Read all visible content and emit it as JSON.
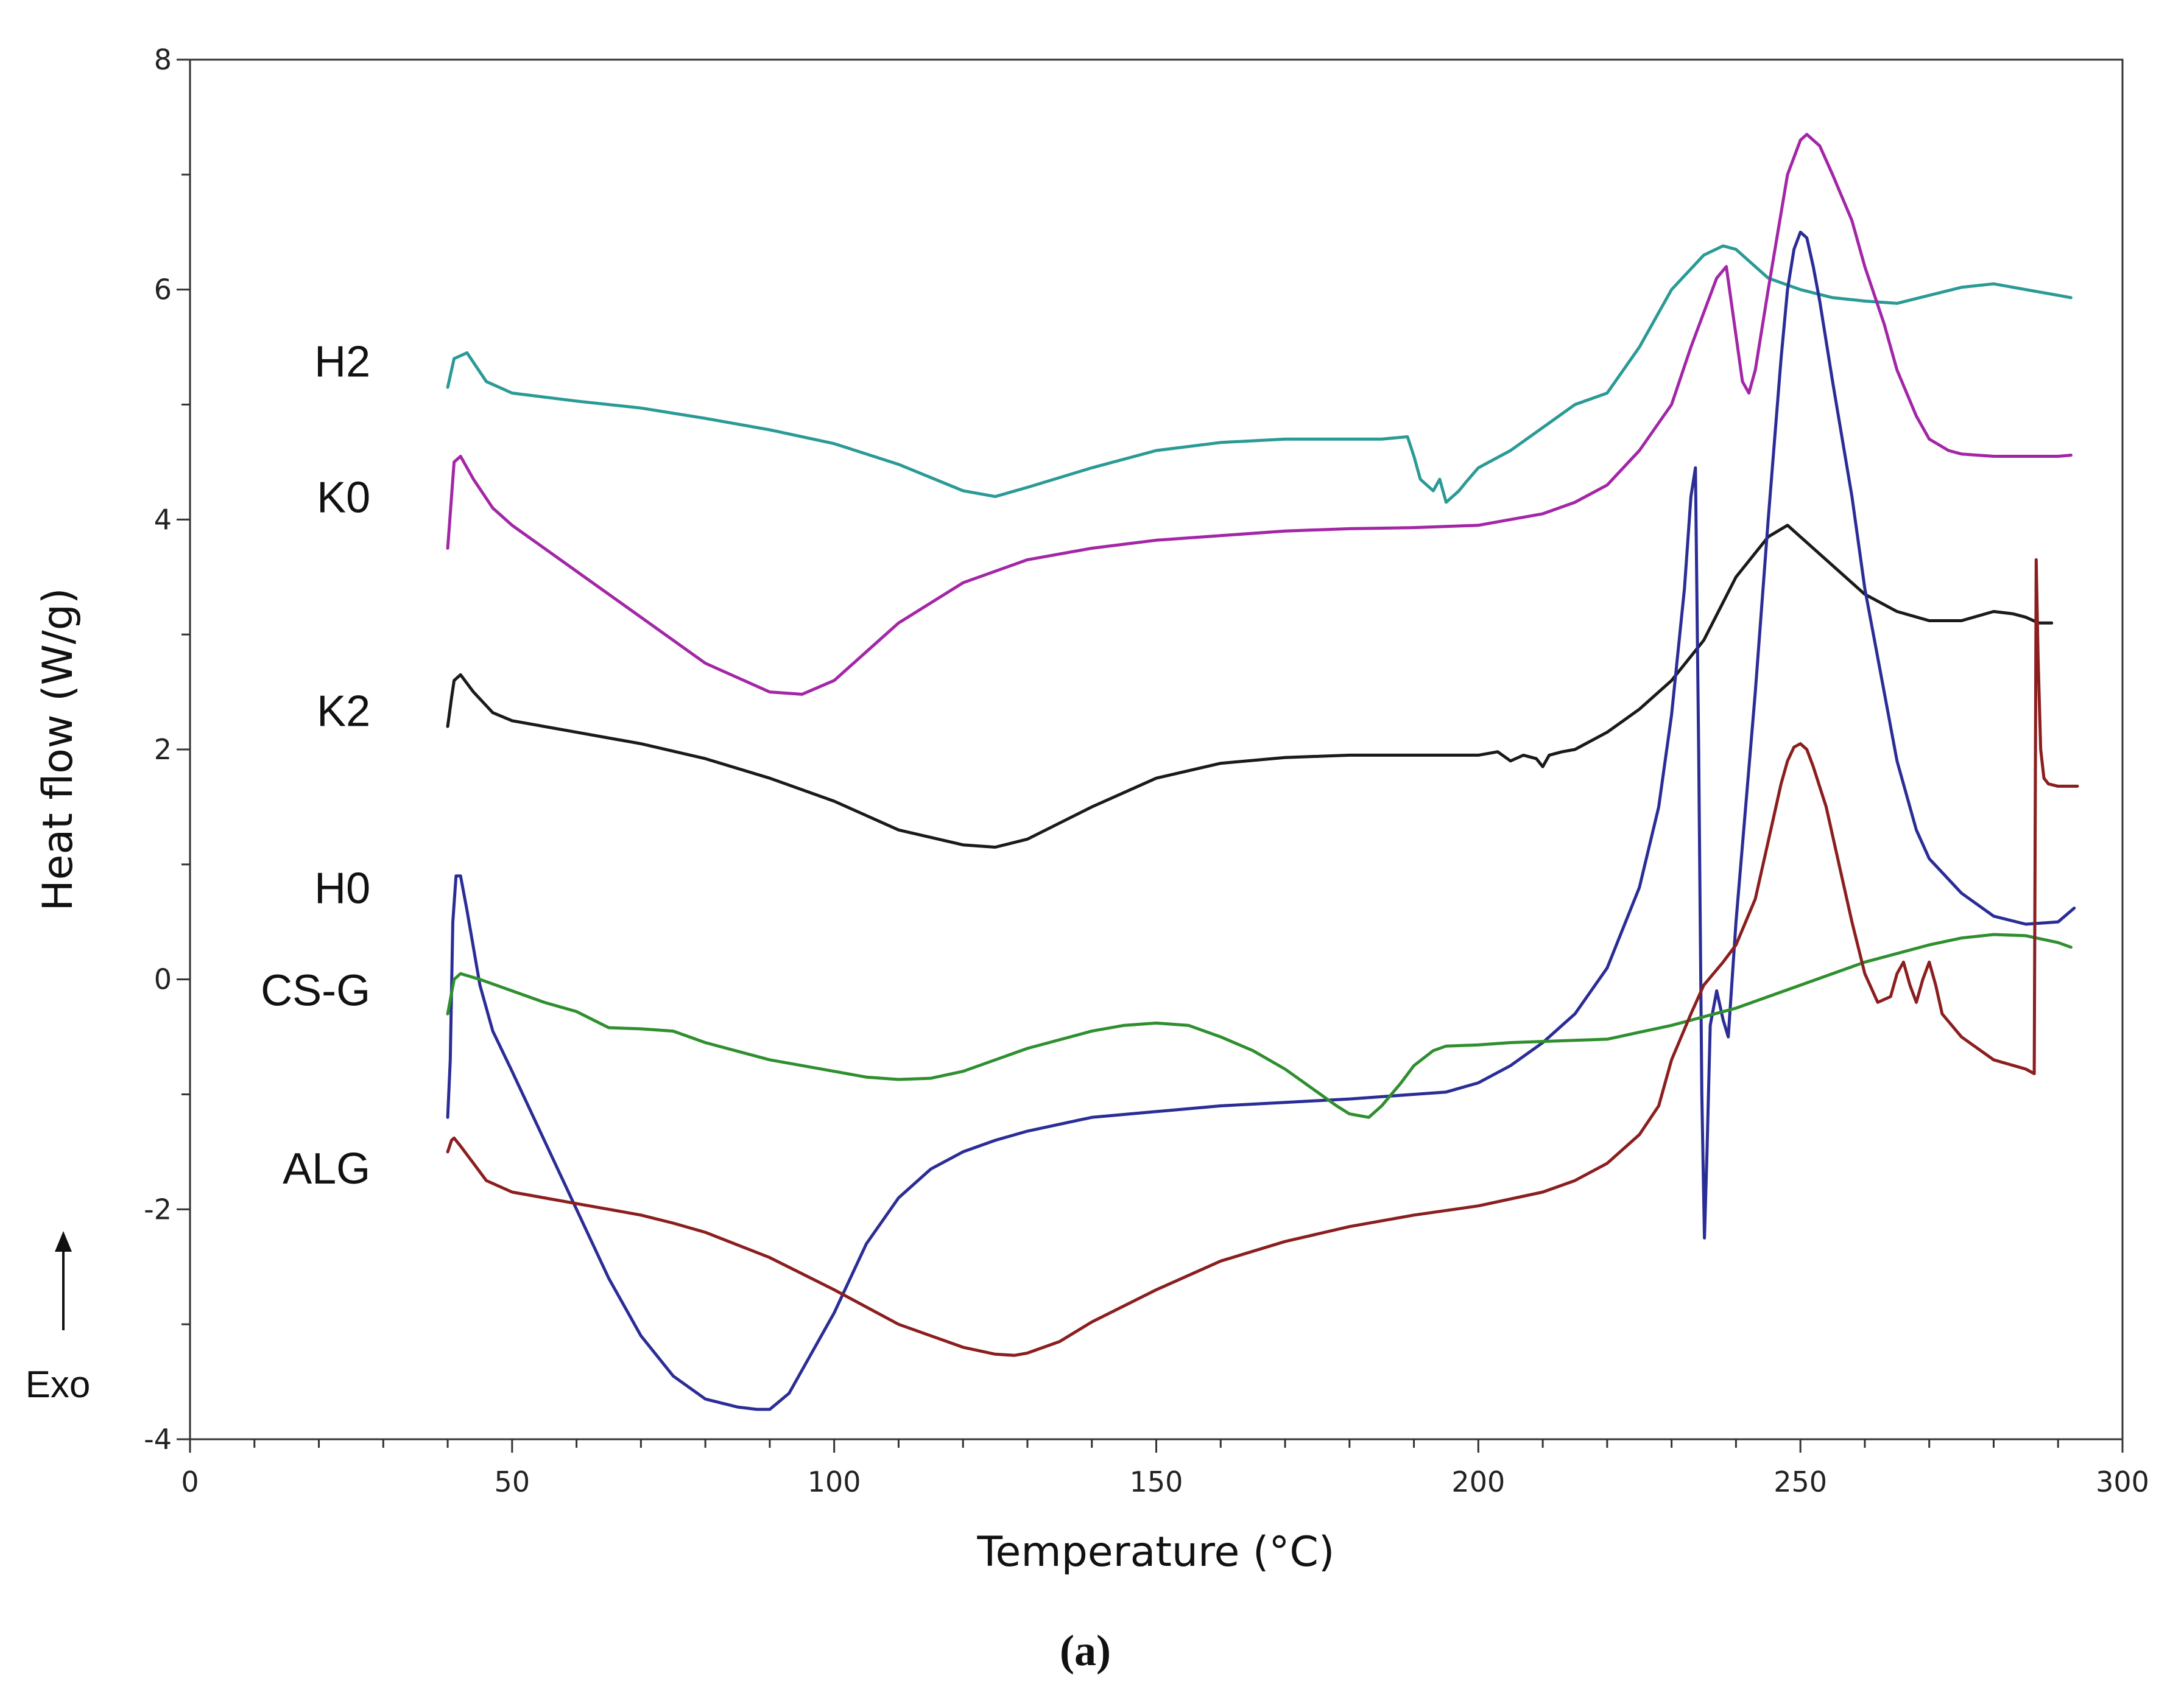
{
  "chart_data": {
    "type": "line",
    "title": "",
    "caption": "(a)",
    "xlabel": "Temperature (°C)",
    "ylabel": "Heat flow (W/g)",
    "xlim": [
      0,
      300
    ],
    "ylim": [
      -4,
      8
    ],
    "xticks": [
      0,
      50,
      100,
      150,
      200,
      250,
      300
    ],
    "yticks": [
      -4,
      -2,
      0,
      2,
      4,
      6,
      8
    ],
    "grid": false,
    "direction_note": "Exo",
    "series": [
      {
        "name": "H2",
        "color": "#2a9a96",
        "x": [
          40,
          41,
          43,
          46,
          50,
          60,
          70,
          80,
          90,
          100,
          110,
          120,
          125,
          130,
          140,
          150,
          160,
          170,
          180,
          185,
          189,
          190,
          191,
          192,
          193,
          194,
          195,
          196,
          197,
          198,
          200,
          205,
          210,
          215,
          220,
          225,
          230,
          235,
          238,
          240,
          243,
          245,
          250,
          255,
          260,
          265,
          270,
          275,
          280,
          285,
          290,
          292
        ],
        "y": [
          5.15,
          5.4,
          5.45,
          5.2,
          5.1,
          5.03,
          4.97,
          4.88,
          4.78,
          4.66,
          4.48,
          4.25,
          4.2,
          4.28,
          4.45,
          4.6,
          4.67,
          4.7,
          4.7,
          4.7,
          4.72,
          4.55,
          4.35,
          4.3,
          4.25,
          4.35,
          4.15,
          4.2,
          4.25,
          4.32,
          4.45,
          4.6,
          4.8,
          5.0,
          5.1,
          5.5,
          6.0,
          6.3,
          6.38,
          6.35,
          6.2,
          6.1,
          6.0,
          5.93,
          5.9,
          5.88,
          5.95,
          6.02,
          6.05,
          6.0,
          5.95,
          5.93
        ]
      },
      {
        "name": "K0",
        "color": "#a326a6",
        "x": [
          40,
          40.6,
          41,
          42,
          44,
          47,
          50,
          55,
          60,
          70,
          80,
          90,
          95,
          100,
          105,
          110,
          120,
          130,
          140,
          150,
          160,
          170,
          180,
          190,
          200,
          205,
          210,
          215,
          220,
          225,
          230,
          233,
          235,
          237,
          238.5,
          240,
          241,
          242,
          243,
          245,
          248,
          250,
          251,
          253,
          255,
          258,
          260,
          263,
          265,
          268,
          270,
          273,
          275,
          280,
          285,
          290,
          292
        ],
        "y": [
          3.75,
          4.2,
          4.5,
          4.55,
          4.35,
          4.1,
          3.95,
          3.75,
          3.55,
          3.15,
          2.75,
          2.5,
          2.48,
          2.6,
          2.85,
          3.1,
          3.45,
          3.65,
          3.75,
          3.82,
          3.86,
          3.9,
          3.92,
          3.93,
          3.95,
          4.0,
          4.05,
          4.15,
          4.3,
          4.6,
          5.0,
          5.5,
          5.8,
          6.1,
          6.2,
          5.6,
          5.2,
          5.1,
          5.3,
          6.0,
          7.0,
          7.3,
          7.35,
          7.25,
          7.0,
          6.6,
          6.2,
          5.7,
          5.3,
          4.9,
          4.7,
          4.6,
          4.57,
          4.55,
          4.55,
          4.55,
          4.56
        ]
      },
      {
        "name": "K2",
        "color": "#1a1a1a",
        "x": [
          40,
          40.6,
          41,
          42,
          44,
          47,
          50,
          60,
          70,
          80,
          90,
          100,
          110,
          120,
          125,
          130,
          140,
          150,
          160,
          170,
          180,
          190,
          200,
          203,
          205,
          207,
          209,
          210,
          211,
          213,
          215,
          220,
          225,
          230,
          235,
          240,
          245,
          248,
          250,
          255,
          260,
          265,
          270,
          275,
          280,
          283,
          285,
          287,
          289
        ],
        "y": [
          2.2,
          2.45,
          2.6,
          2.65,
          2.5,
          2.32,
          2.25,
          2.15,
          2.05,
          1.92,
          1.75,
          1.55,
          1.3,
          1.17,
          1.15,
          1.22,
          1.5,
          1.75,
          1.88,
          1.93,
          1.95,
          1.95,
          1.95,
          1.98,
          1.9,
          1.95,
          1.92,
          1.85,
          1.95,
          1.98,
          2.0,
          2.15,
          2.35,
          2.6,
          2.95,
          3.5,
          3.85,
          3.95,
          3.85,
          3.6,
          3.35,
          3.2,
          3.12,
          3.12,
          3.2,
          3.18,
          3.15,
          3.1,
          3.1
        ]
      },
      {
        "name": "H0",
        "color": "#2b2d96",
        "x": [
          40,
          40.4,
          40.8,
          41.3,
          42,
          43,
          45,
          47,
          50,
          55,
          60,
          65,
          70,
          75,
          80,
          85,
          88,
          90,
          93,
          95,
          100,
          105,
          110,
          115,
          120,
          125,
          130,
          140,
          150,
          160,
          170,
          180,
          190,
          195,
          200,
          205,
          210,
          215,
          220,
          225,
          228,
          230,
          232,
          233,
          233.7,
          234.2,
          234.7,
          235.1,
          235.5,
          236,
          237,
          238,
          238.8,
          240,
          243,
          245,
          247,
          248,
          249,
          250,
          251,
          252,
          253,
          255,
          258,
          260,
          263,
          265,
          268,
          270,
          275,
          280,
          285,
          290,
          292.5
        ],
        "y": [
          -1.2,
          -0.7,
          0.5,
          0.9,
          0.9,
          0.6,
          -0.05,
          -0.45,
          -0.8,
          -1.4,
          -2.0,
          -2.6,
          -3.1,
          -3.45,
          -3.65,
          -3.72,
          -3.74,
          -3.74,
          -3.6,
          -3.4,
          -2.9,
          -2.3,
          -1.9,
          -1.65,
          -1.5,
          -1.4,
          -1.32,
          -1.2,
          -1.15,
          -1.1,
          -1.07,
          -1.04,
          -1.0,
          -0.98,
          -0.9,
          -0.75,
          -0.55,
          -0.3,
          0.1,
          0.8,
          1.5,
          2.3,
          3.4,
          4.2,
          4.45,
          2.0,
          -1.0,
          -2.25,
          -1.5,
          -0.4,
          -0.1,
          -0.35,
          -0.5,
          0.5,
          2.5,
          4.0,
          5.4,
          6.0,
          6.35,
          6.5,
          6.45,
          6.2,
          5.9,
          5.2,
          4.2,
          3.4,
          2.5,
          1.9,
          1.3,
          1.05,
          0.75,
          0.55,
          0.48,
          0.5,
          0.62
        ]
      },
      {
        "name": "CS-G",
        "color": "#2f8f2f",
        "x": [
          40,
          41,
          42,
          45,
          50,
          55,
          60,
          65,
          70,
          75,
          80,
          90,
          100,
          105,
          110,
          115,
          120,
          130,
          140,
          145,
          150,
          155,
          160,
          165,
          170,
          175,
          178,
          180,
          183,
          185,
          188,
          190,
          193,
          195,
          200,
          205,
          210,
          220,
          230,
          240,
          250,
          260,
          270,
          275,
          280,
          285,
          290,
          292
        ],
        "y": [
          -0.3,
          0.0,
          0.05,
          0.0,
          -0.1,
          -0.2,
          -0.28,
          -0.42,
          -0.43,
          -0.45,
          -0.55,
          -0.7,
          -0.8,
          -0.85,
          -0.87,
          -0.86,
          -0.8,
          -0.6,
          -0.45,
          -0.4,
          -0.38,
          -0.4,
          -0.5,
          -0.62,
          -0.78,
          -0.98,
          -1.1,
          -1.17,
          -1.2,
          -1.1,
          -0.9,
          -0.75,
          -0.62,
          -0.58,
          -0.57,
          -0.55,
          -0.54,
          -0.52,
          -0.4,
          -0.25,
          -0.05,
          0.15,
          0.3,
          0.36,
          0.39,
          0.38,
          0.32,
          0.28
        ]
      },
      {
        "name": "ALG",
        "color": "#8b1e1e",
        "x": [
          40,
          40.6,
          41,
          42,
          44,
          46,
          50,
          55,
          60,
          65,
          70,
          75,
          80,
          90,
          100,
          110,
          120,
          125,
          128,
          130,
          135,
          140,
          150,
          160,
          170,
          180,
          190,
          200,
          210,
          215,
          220,
          225,
          228,
          230,
          233,
          235,
          238,
          240,
          243,
          245,
          247,
          248,
          249,
          250,
          251,
          252,
          254,
          256,
          258,
          260,
          262,
          264,
          265,
          266,
          267,
          268,
          269,
          270,
          271,
          272,
          275,
          280,
          285,
          286.3,
          286.6,
          286.9,
          287.3,
          287.8,
          288.5,
          290,
          293
        ],
        "y": [
          -1.5,
          -1.4,
          -1.38,
          -1.45,
          -1.6,
          -1.75,
          -1.85,
          -1.9,
          -1.95,
          -2.0,
          -2.05,
          -2.12,
          -2.2,
          -2.42,
          -2.7,
          -3.0,
          -3.2,
          -3.26,
          -3.27,
          -3.25,
          -3.15,
          -2.98,
          -2.7,
          -2.45,
          -2.28,
          -2.15,
          -2.05,
          -1.97,
          -1.85,
          -1.75,
          -1.6,
          -1.35,
          -1.1,
          -0.7,
          -0.3,
          -0.05,
          0.15,
          0.3,
          0.7,
          1.2,
          1.7,
          1.9,
          2.02,
          2.05,
          2.0,
          1.85,
          1.5,
          1.0,
          0.5,
          0.05,
          -0.2,
          -0.15,
          0.05,
          0.15,
          -0.05,
          -0.2,
          0.0,
          0.15,
          -0.05,
          -0.3,
          -0.5,
          -0.7,
          -0.78,
          -0.82,
          3.65,
          2.8,
          2.0,
          1.75,
          1.7,
          1.68,
          1.68
        ]
      }
    ],
    "labels": [
      {
        "text": "H2",
        "x": 28,
        "y": 5.37
      },
      {
        "text": "K0",
        "x": 28,
        "y": 4.19
      },
      {
        "text": "K2",
        "x": 28,
        "y": 2.33
      },
      {
        "text": "H0",
        "x": 28,
        "y": 0.79
      },
      {
        "text": "CS-G",
        "x": 28,
        "y": -0.1
      },
      {
        "text": "ALG",
        "x": 28,
        "y": -1.65
      }
    ]
  }
}
